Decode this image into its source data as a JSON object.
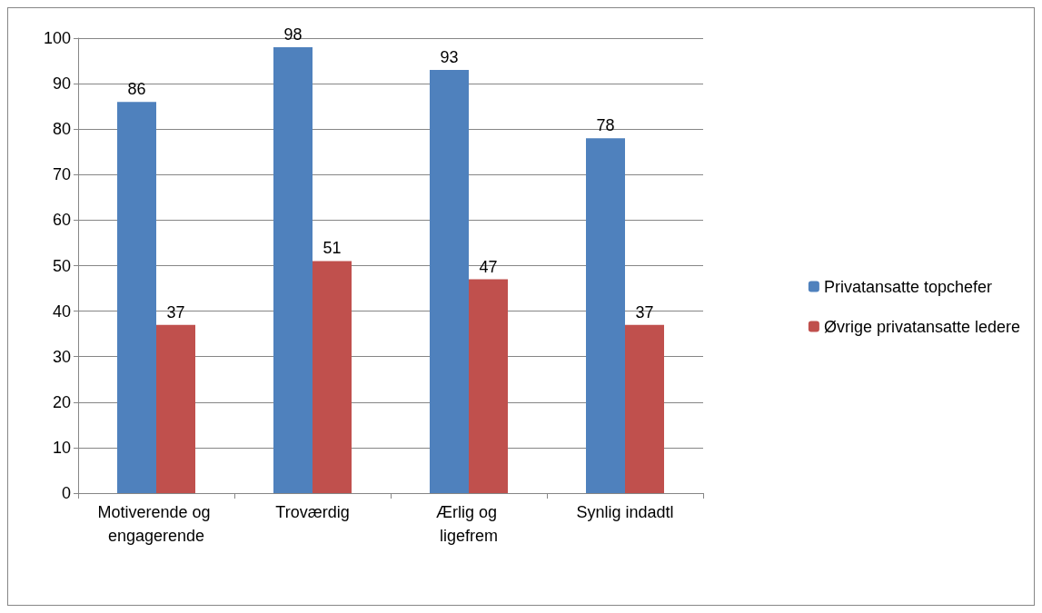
{
  "chart_data": {
    "type": "bar",
    "categories": [
      "Motiverende og engagerende",
      "Troværdig",
      "Ærlig og ligefrem",
      "Synlig indadtl"
    ],
    "series": [
      {
        "name": "Privatansatte topchefer",
        "color": "#4f81bd",
        "values": [
          86,
          98,
          93,
          78
        ]
      },
      {
        "name": "Øvrige privatansatte ledere",
        "color": "#c0504d",
        "values": [
          37,
          51,
          47,
          37
        ]
      }
    ],
    "ylim": [
      0,
      100
    ],
    "yticks": [
      0,
      10,
      20,
      30,
      40,
      50,
      60,
      70,
      80,
      90,
      100
    ],
    "grid": "y",
    "legend": "right",
    "data_labels": true
  }
}
